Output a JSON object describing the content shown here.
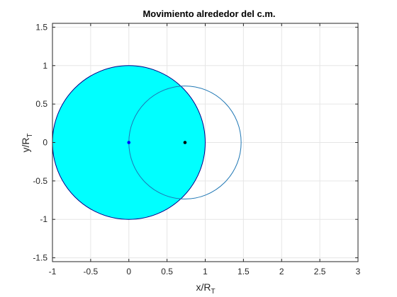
{
  "chart_data": {
    "type": "scatter",
    "title": "Movimiento alrededor del c.m.",
    "xlabel": {
      "base": "x/R",
      "sub": "T"
    },
    "ylabel": {
      "base": "y/R",
      "sub": "T"
    },
    "xlim": [
      -1,
      3
    ],
    "ylim": [
      -1.55,
      1.55
    ],
    "x_ticks": [
      -1,
      -0.5,
      0,
      0.5,
      1,
      1.5,
      2,
      2.5,
      3
    ],
    "x_tick_labels": [
      "-1",
      "-0.5",
      "0",
      "0.5",
      "1",
      "1.5",
      "2",
      "2.5",
      "3"
    ],
    "y_ticks": [
      -1.5,
      -1,
      -0.5,
      0,
      0.5,
      1,
      1.5
    ],
    "y_tick_labels": [
      "-1.5",
      "-1",
      "-0.5",
      "0",
      "0.5",
      "1",
      "1.5"
    ],
    "grid": true,
    "circles": [
      {
        "cx": 0,
        "cy": 0,
        "r": 1,
        "fill": "#00ffff",
        "stroke": "#00008b"
      },
      {
        "cx": 0.735,
        "cy": 0,
        "r": 0.735,
        "fill": "none",
        "stroke": "#1f77b4"
      }
    ],
    "points": [
      {
        "x": 0,
        "y": 0,
        "color": "#0000ff"
      },
      {
        "x": 0.735,
        "y": 0,
        "color": "#000000"
      }
    ]
  }
}
